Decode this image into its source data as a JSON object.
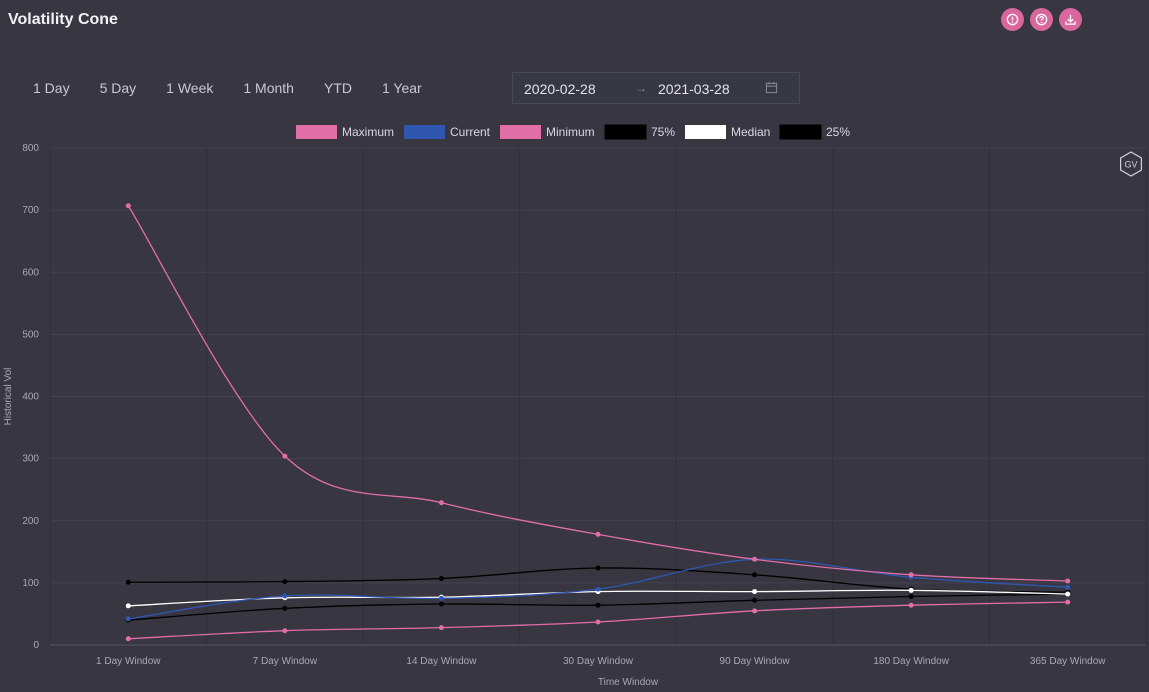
{
  "header": {
    "title": "Volatility Cone"
  },
  "top_icons": [
    {
      "name": "alert-icon"
    },
    {
      "name": "help-icon"
    },
    {
      "name": "download-icon"
    }
  ],
  "range_tabs": [
    "1 Day",
    "5 Day",
    "1 Week",
    "1 Month",
    "YTD",
    "1 Year"
  ],
  "date_range": {
    "start": "2020-02-28",
    "separator": "→",
    "end": "2021-03-28",
    "icon": "calendar-icon"
  },
  "watermark": "GV",
  "colors": {
    "background": "#373641",
    "accent": "#d9679e",
    "maximum": "#e26ea7",
    "current": "#2f57b0",
    "minimum": "#e26ea7",
    "p75": "#000000",
    "median": "#ffffff",
    "p25": "#000000"
  },
  "chart_data": {
    "type": "line",
    "categories": [
      "1 Day Window",
      "7 Day Window",
      "14 Day Window",
      "30 Day Window",
      "90 Day Window",
      "180 Day Window",
      "365 Day Window"
    ],
    "xlabel": "Time Window",
    "ylabel": "Historical Vol",
    "ylim": [
      0,
      800
    ],
    "yticks": [
      0,
      100,
      200,
      300,
      400,
      500,
      600,
      700,
      800
    ],
    "grid": true,
    "legend_position": "top-center",
    "series": [
      {
        "name": "Maximum",
        "color": "#e26ea7",
        "values": [
          707,
          304,
          229,
          178,
          138,
          113,
          103
        ]
      },
      {
        "name": "Current",
        "color": "#2f57b0",
        "values": [
          42,
          79,
          75,
          90,
          138,
          109,
          93
        ]
      },
      {
        "name": "Minimum",
        "color": "#e26ea7",
        "values": [
          10,
          23,
          28,
          37,
          55,
          64,
          69
        ]
      },
      {
        "name": "75%",
        "color": "#000000",
        "values": [
          101,
          102,
          107,
          124,
          113,
          90,
          85
        ]
      },
      {
        "name": "Median",
        "color": "#ffffff",
        "values": [
          63,
          76,
          77,
          86,
          86,
          88,
          82
        ]
      },
      {
        "name": "25%",
        "color": "#000000",
        "values": [
          40,
          59,
          66,
          64,
          72,
          78,
          82
        ]
      }
    ]
  }
}
